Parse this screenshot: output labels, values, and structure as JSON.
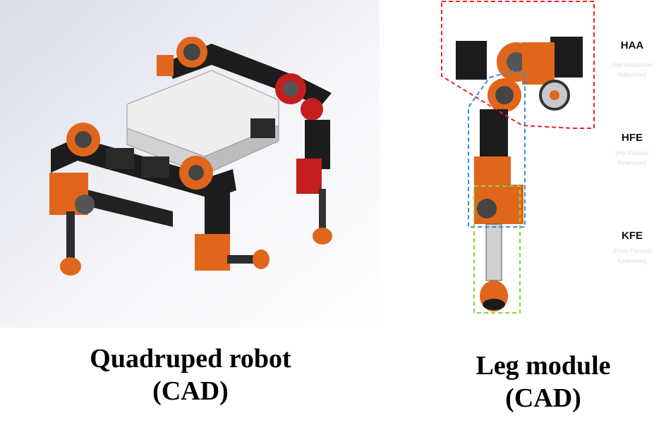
{
  "captions": {
    "quadruped": [
      "Quadruped robot",
      "(CAD)"
    ],
    "leg": [
      "Leg module",
      "(CAD)"
    ]
  },
  "joints": [
    {
      "abbr": "HAA",
      "sub": [
        "(Hip Abduction/",
        "Adduction)"
      ],
      "box_color": "#e8232b"
    },
    {
      "abbr": "HFE",
      "sub": [
        "(Hip Flexion/",
        "Extension)"
      ],
      "box_color": "#2f8fe0"
    },
    {
      "abbr": "KFE",
      "sub": [
        "(Knee Flexion/",
        "Extension)"
      ],
      "box_color": "#8cd04a"
    }
  ],
  "colors": {
    "orange": "#e0661c",
    "red": "#c41e1e",
    "black": "#1c1c1c",
    "dark": "#333333",
    "silver": "#c9c9cc",
    "background_left": "#e9ebf2"
  }
}
